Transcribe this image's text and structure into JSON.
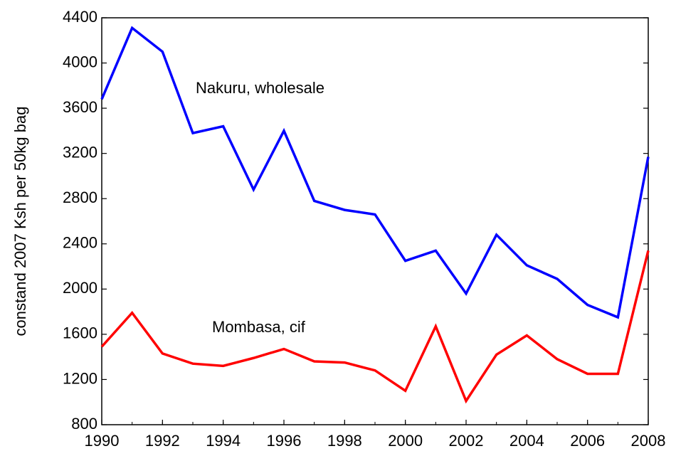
{
  "chart_data": {
    "type": "line",
    "y_label": "constand 2007 Ksh per 50kg bag",
    "x": [
      1990,
      1991,
      1992,
      1993,
      1994,
      1995,
      1996,
      1997,
      1998,
      1999,
      2000,
      2001,
      2002,
      2003,
      2004,
      2005,
      2006,
      2007,
      2008
    ],
    "series": [
      {
        "name": "Nakuru, wholesale",
        "color": "#0000ff",
        "values": [
          3680,
          4310,
          4100,
          3380,
          3440,
          2880,
          3400,
          2780,
          2700,
          2660,
          2250,
          2340,
          1960,
          2480,
          2210,
          2090,
          1860,
          1750,
          3170
        ]
      },
      {
        "name": "Mombasa, cif",
        "color": "#ff0000",
        "values": [
          1490,
          1790,
          1430,
          1340,
          1320,
          1390,
          1470,
          1360,
          1350,
          1280,
          1100,
          1670,
          1010,
          1420,
          1590,
          1380,
          1250,
          1250,
          2340
        ]
      }
    ],
    "xlim": [
      1990,
      2008
    ],
    "xticks": [
      1990,
      1992,
      1994,
      1996,
      1998,
      2000,
      2002,
      2004,
      2006,
      2008
    ],
    "ylim": [
      800,
      4400
    ],
    "yticks": [
      800,
      1200,
      1600,
      2000,
      2400,
      2800,
      3200,
      3600,
      4000,
      4400
    ],
    "grid": false
  }
}
